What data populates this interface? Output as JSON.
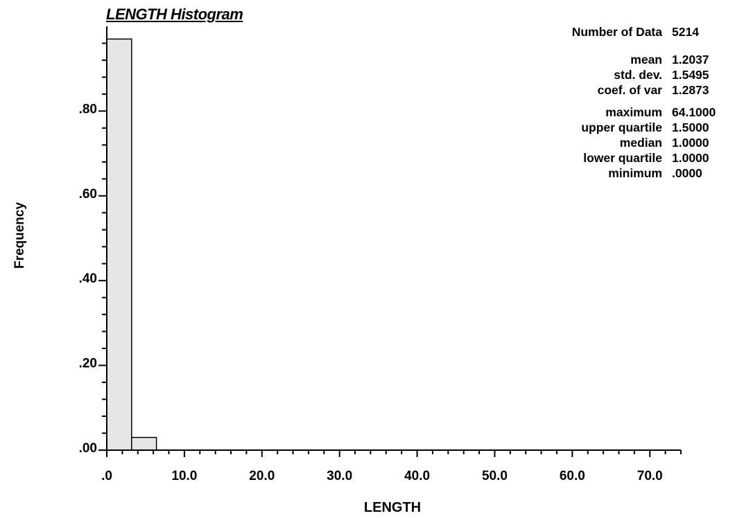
{
  "title": "LENGTH Histogram",
  "xlabel": "LENGTH",
  "ylabel": "Frequency",
  "stats": [
    {
      "label": "Number of Data",
      "value": "5214"
    },
    {
      "label": "mean",
      "value": "1.2037"
    },
    {
      "label": "std. dev.",
      "value": "1.5495"
    },
    {
      "label": "coef. of var",
      "value": "1.2873"
    },
    {
      "label": "maximum",
      "value": "64.1000"
    },
    {
      "label": "upper quartile",
      "value": "1.5000"
    },
    {
      "label": "median",
      "value": "1.0000"
    },
    {
      "label": "lower quartile",
      "value": "1.0000"
    },
    {
      "label": "minimum",
      "value": ".0000"
    }
  ],
  "chart_data": {
    "type": "bar",
    "title": "LENGTH Histogram",
    "xlabel": "LENGTH",
    "ylabel": "Frequency",
    "xlim": [
      0,
      74
    ],
    "ylim": [
      0,
      1.0
    ],
    "bins": [
      {
        "x0": 0.0,
        "x1": 3.2,
        "value": 0.97
      },
      {
        "x0": 3.2,
        "x1": 6.4,
        "value": 0.03
      }
    ],
    "x_ticks": [
      0,
      10,
      20,
      30,
      40,
      50,
      60,
      70
    ],
    "x_tick_labels": [
      ".0",
      "10.0",
      "20.0",
      "30.0",
      "40.0",
      "50.0",
      "60.0",
      "70.0"
    ],
    "y_ticks": [
      0,
      0.2,
      0.4,
      0.6,
      0.8
    ],
    "y_tick_labels": [
      ".00",
      ".20",
      ".40",
      ".60",
      ".80"
    ],
    "bar_color": "#e6e6e6",
    "grid": false
  }
}
